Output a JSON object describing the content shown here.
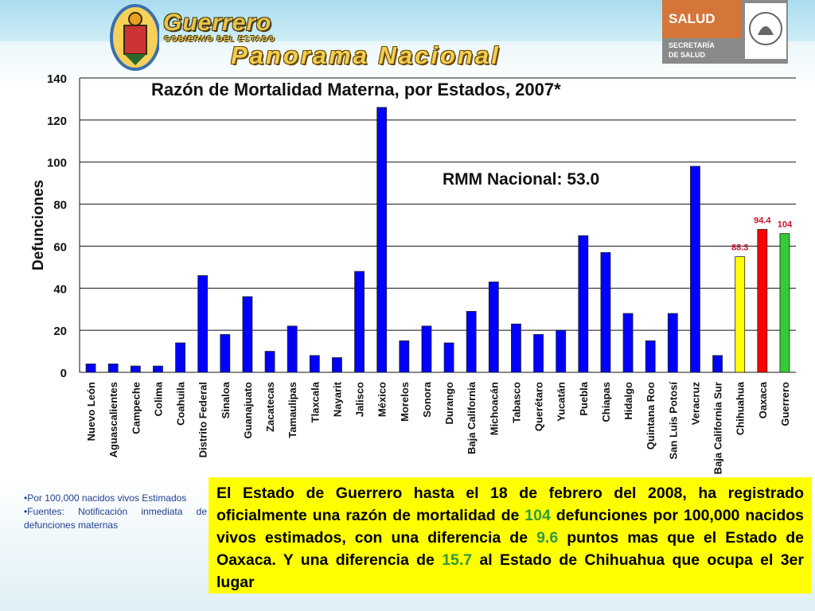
{
  "header": {
    "state_name": "Guerrero",
    "state_subtitle": "GOBIERNO DEL ESTADO",
    "headline": "Panorama Nacional",
    "salud_brand": "SALUD",
    "salud_line1": "SECRETARÍA",
    "salud_line2": "DE SALUD"
  },
  "chart_data": {
    "type": "bar",
    "title": "Razón de Mortalidad Materna, por Estados, 2007*",
    "ylabel": "Defunciones",
    "xlabel": "",
    "ylim": [
      0,
      140
    ],
    "yticks": [
      0,
      20,
      40,
      60,
      80,
      100,
      120,
      140
    ],
    "grid": true,
    "annotation": "RMM Nacional: 53.0",
    "categories": [
      "Nuevo León",
      "Aguascalientes",
      "Campeche",
      "Colima",
      "Coahuila",
      "Distrito Federal",
      "Sinaloa",
      "Guanajuato",
      "Zacatecas",
      "Tamaulipas",
      "Tlaxcala",
      "Nayarit",
      "Jalisco",
      "México",
      "Morelos",
      "Sonora",
      "Durango",
      "Baja California",
      "Michoacán",
      "Tabasco",
      "Querétaro",
      "Yucatán",
      "Puebla",
      "Chiapas",
      "Hidalgo",
      "Quintana Roo",
      "San Luis Potosí",
      "Veracruz",
      "Baja California Sur",
      "Chihuahua",
      "Oaxaca",
      "Guerrero"
    ],
    "values": [
      4,
      4,
      3,
      3,
      14,
      46,
      18,
      36,
      10,
      22,
      8,
      7,
      48,
      126,
      15,
      22,
      14,
      29,
      43,
      23,
      18,
      20,
      65,
      57,
      28,
      15,
      28,
      98,
      8,
      55,
      68,
      66
    ],
    "colors": [
      "#0000ff",
      "#0000ff",
      "#0000ff",
      "#0000ff",
      "#0000ff",
      "#0000ff",
      "#0000ff",
      "#0000ff",
      "#0000ff",
      "#0000ff",
      "#0000ff",
      "#0000ff",
      "#0000ff",
      "#0000ff",
      "#0000ff",
      "#0000ff",
      "#0000ff",
      "#0000ff",
      "#0000ff",
      "#0000ff",
      "#0000ff",
      "#0000ff",
      "#0000ff",
      "#0000ff",
      "#0000ff",
      "#0000ff",
      "#0000ff",
      "#0000ff",
      "#0000ff",
      "#ffff00",
      "#ff0000",
      "#33cc33"
    ],
    "data_labels": [
      null,
      null,
      null,
      null,
      null,
      null,
      null,
      null,
      null,
      null,
      null,
      null,
      null,
      null,
      null,
      null,
      null,
      null,
      null,
      null,
      null,
      null,
      null,
      null,
      null,
      null,
      null,
      null,
      null,
      "88.3",
      "94.4",
      "104"
    ],
    "label_color": "#c8102e"
  },
  "footnotes": {
    "note1": "•Por 100,000 nacidos vivos Estimados",
    "note2": "•Fuentes: Notificación inmediata de defunciones maternas"
  },
  "summary": {
    "part1": "El Estado de Guerrero hasta el 18 de febrero del 2008, ha registrado oficialmente una razón de mortalidad de ",
    "v1": "104",
    "part2": " defunciones por 100,000 nacidos vivos estimados, con una diferencia de ",
    "v2": "9.6",
    "part3": " puntos mas que  el Estado de Oaxaca. Y una diferencia de ",
    "v3": "15.7",
    "part4": " al Estado de Chihuahua que ocupa el 3er  lugar"
  }
}
